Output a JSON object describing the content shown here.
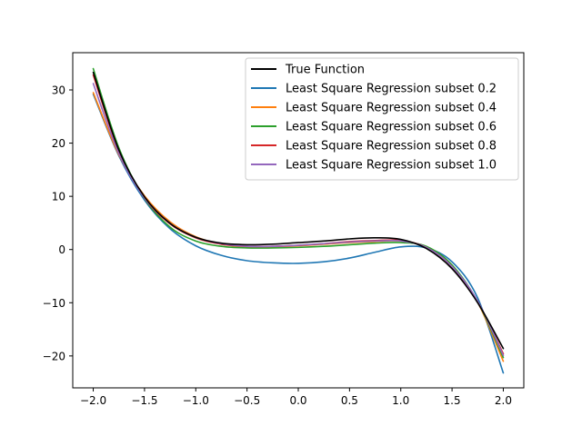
{
  "chart_data": {
    "type": "line",
    "title": "",
    "xlabel": "",
    "ylabel": "",
    "xlim": [
      -2.2,
      2.2
    ],
    "ylim": [
      -26,
      37
    ],
    "x_ticks": [
      -2.0,
      -1.5,
      -1.0,
      -0.5,
      0.0,
      0.5,
      1.0,
      1.5,
      2.0
    ],
    "x_tick_labels": [
      "−2.0",
      "−1.5",
      "−1.0",
      "−0.5",
      "0.0",
      "0.5",
      "1.0",
      "1.5",
      "2.0"
    ],
    "y_ticks": [
      -20,
      -10,
      0,
      10,
      20,
      30
    ],
    "y_tick_labels": [
      "−20",
      "−10",
      "0",
      "10",
      "20",
      "30"
    ],
    "grid": false,
    "legend_position": "top-right",
    "x": [
      -2.0,
      -1.75,
      -1.5,
      -1.25,
      -1.0,
      -0.75,
      -0.5,
      -0.25,
      0.0,
      0.25,
      0.5,
      0.75,
      1.0,
      1.25,
      1.5,
      1.75,
      2.0
    ],
    "series": [
      {
        "name": "True Function",
        "color": "#000000",
        "values": [
          33.3,
          18.7,
          9.9,
          4.9,
          2.3,
          1.2,
          0.9,
          1.0,
          1.3,
          1.6,
          2.0,
          2.2,
          1.9,
          0.2,
          -3.6,
          -10.0,
          -18.6
        ]
      },
      {
        "name": "Least Square Regression subset 0.2",
        "color": "#1f77b4",
        "values": [
          29.2,
          17.6,
          9.3,
          3.9,
          0.7,
          -1.1,
          -2.1,
          -2.5,
          -2.6,
          -2.3,
          -1.6,
          -0.5,
          0.5,
          0.3,
          -2.3,
          -9.1,
          -23.2
        ]
      },
      {
        "name": "Least Square Regression subset 0.4",
        "color": "#ff7f0e",
        "values": [
          29.5,
          17.8,
          10.1,
          5.2,
          2.4,
          1.0,
          0.5,
          0.5,
          0.7,
          1.0,
          1.3,
          1.5,
          1.6,
          0.4,
          -3.3,
          -9.9,
          -21.0
        ]
      },
      {
        "name": "Least Square Regression subset 0.6",
        "color": "#2ca02c",
        "values": [
          34.0,
          19.1,
          9.6,
          4.2,
          1.6,
          0.6,
          0.3,
          0.3,
          0.4,
          0.6,
          0.9,
          1.2,
          1.3,
          0.6,
          -2.9,
          -9.8,
          -20.3
        ]
      },
      {
        "name": "Least Square Regression subset 0.8",
        "color": "#d62728",
        "values": [
          32.8,
          18.5,
          9.7,
          4.8,
          2.2,
          1.0,
          0.6,
          0.6,
          0.8,
          1.1,
          1.5,
          1.7,
          1.7,
          0.4,
          -3.2,
          -9.8,
          -19.6
        ]
      },
      {
        "name": "Least Square Regression subset 1.0",
        "color": "#9467bd",
        "values": [
          31.2,
          18.0,
          9.7,
          4.9,
          2.3,
          1.1,
          0.6,
          0.6,
          0.8,
          1.1,
          1.4,
          1.6,
          1.6,
          0.4,
          -3.2,
          -9.7,
          -19.9
        ]
      }
    ]
  }
}
